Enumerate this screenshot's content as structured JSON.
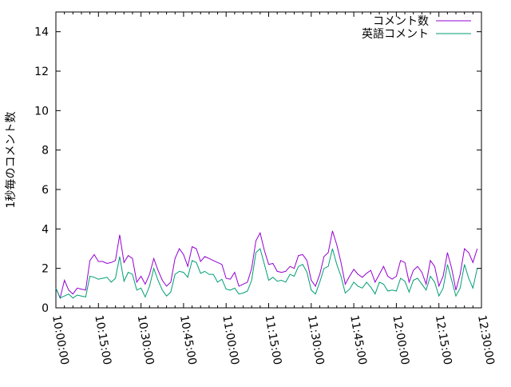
{
  "chart_data": {
    "type": "line",
    "title": "",
    "xlabel": "",
    "ylabel": "1秒毎のコメント数",
    "ylim": [
      0,
      15
    ],
    "yticks": [
      "0",
      "2",
      "4",
      "6",
      "8",
      "10",
      "12",
      "14"
    ],
    "xlim": [
      "10:00:00",
      "12:30:00"
    ],
    "xticks": [
      "10:00:00",
      "10:15:00",
      "10:30:00",
      "10:45:00",
      "11:00:00",
      "11:15:00",
      "11:30:00",
      "11:45:00",
      "12:00:00",
      "12:15:00",
      "12:30:00"
    ],
    "grid": false,
    "legend_position": "top-right",
    "x": [
      "10:00:00",
      "10:01:30",
      "10:03:00",
      "10:04:30",
      "10:06:00",
      "10:07:30",
      "10:09:00",
      "10:10:30",
      "10:12:00",
      "10:13:30",
      "10:15:00",
      "10:16:30",
      "10:18:00",
      "10:19:30",
      "10:21:00",
      "10:22:30",
      "10:24:00",
      "10:25:30",
      "10:27:00",
      "10:28:30",
      "10:30:00",
      "10:31:30",
      "10:33:00",
      "10:34:30",
      "10:36:00",
      "10:37:30",
      "10:39:00",
      "10:40:30",
      "10:42:00",
      "10:43:30",
      "10:45:00",
      "10:46:30",
      "10:48:00",
      "10:49:30",
      "10:51:00",
      "10:52:30",
      "10:54:00",
      "10:55:30",
      "10:57:00",
      "10:58:30",
      "11:00:00",
      "11:01:30",
      "11:03:00",
      "11:04:30",
      "11:06:00",
      "11:07:30",
      "11:09:00",
      "11:10:30",
      "11:12:00",
      "11:13:30",
      "11:15:00",
      "11:16:30",
      "11:18:00",
      "11:19:30",
      "11:21:00",
      "11:22:30",
      "11:24:00",
      "11:25:30",
      "11:27:00",
      "11:28:30",
      "11:30:00",
      "11:31:30",
      "11:33:00",
      "11:34:30",
      "11:36:00",
      "11:37:30",
      "11:39:00",
      "11:40:30",
      "11:42:00",
      "11:43:30",
      "11:45:00",
      "11:46:30",
      "11:48:00",
      "11:49:30",
      "11:51:00",
      "11:52:30",
      "11:54:00",
      "11:55:30",
      "11:57:00",
      "11:58:30",
      "12:00:00",
      "12:01:30",
      "12:03:00",
      "12:04:30",
      "12:06:00",
      "12:07:30",
      "12:09:00",
      "12:10:30",
      "12:12:00",
      "12:13:30",
      "12:15:00",
      "12:16:30",
      "12:18:00",
      "12:19:30",
      "12:21:00",
      "12:22:30",
      "12:24:00",
      "12:25:30",
      "12:27:00",
      "12:28:30"
    ],
    "series": [
      {
        "name": "コメント数",
        "color": "#9400d3",
        "values": [
          1.0,
          0.5,
          1.4,
          0.9,
          0.7,
          1.0,
          0.95,
          0.9,
          2.4,
          2.7,
          2.35,
          2.35,
          2.25,
          2.3,
          2.4,
          3.7,
          2.3,
          2.65,
          2.5,
          1.3,
          1.6,
          1.2,
          1.7,
          2.5,
          1.9,
          1.4,
          1.1,
          1.3,
          2.5,
          3.0,
          2.7,
          2.1,
          3.1,
          3.0,
          2.35,
          2.6,
          2.5,
          2.4,
          2.3,
          2.2,
          1.5,
          1.45,
          1.8,
          1.1,
          1.2,
          1.3,
          2.0,
          3.4,
          3.8,
          2.9,
          2.2,
          2.25,
          1.85,
          1.8,
          1.85,
          2.1,
          2.0,
          2.65,
          2.7,
          2.4,
          1.4,
          1.1,
          1.7,
          2.6,
          2.8,
          3.9,
          3.2,
          2.3,
          1.2,
          1.6,
          1.95,
          1.7,
          1.55,
          1.75,
          1.9,
          1.3,
          1.7,
          2.1,
          1.6,
          1.45,
          1.6,
          2.4,
          2.3,
          1.3,
          1.9,
          2.1,
          1.8,
          1.2,
          2.4,
          2.1,
          1.1,
          1.6,
          2.8,
          2.0,
          0.9,
          1.7,
          3.0,
          2.8,
          2.3,
          3.0
        ]
      },
      {
        "name": "英語コメント",
        "color": "#009e73",
        "values": [
          1.0,
          0.5,
          0.6,
          0.7,
          0.5,
          0.65,
          0.6,
          0.55,
          1.6,
          1.55,
          1.45,
          1.5,
          1.55,
          1.3,
          1.5,
          2.6,
          1.35,
          1.8,
          1.7,
          0.9,
          1.0,
          0.55,
          1.1,
          2.0,
          1.4,
          0.9,
          0.6,
          0.8,
          1.7,
          1.85,
          1.8,
          1.55,
          2.4,
          2.3,
          1.75,
          1.85,
          1.7,
          1.7,
          1.3,
          1.45,
          0.95,
          0.9,
          1.0,
          0.7,
          0.75,
          0.85,
          1.4,
          2.8,
          3.0,
          2.2,
          1.4,
          1.55,
          1.35,
          1.4,
          1.3,
          1.7,
          1.6,
          2.1,
          2.2,
          1.8,
          0.9,
          0.7,
          1.3,
          2.0,
          2.1,
          3.0,
          2.2,
          1.6,
          0.75,
          0.95,
          1.3,
          1.1,
          1.0,
          1.3,
          1.05,
          0.7,
          1.3,
          1.2,
          0.85,
          0.9,
          0.85,
          1.5,
          1.35,
          0.8,
          1.4,
          1.5,
          1.2,
          0.9,
          1.6,
          1.3,
          0.6,
          1.0,
          2.2,
          1.4,
          0.6,
          1.0,
          2.2,
          1.5,
          1.0,
          2.0
        ]
      }
    ]
  }
}
